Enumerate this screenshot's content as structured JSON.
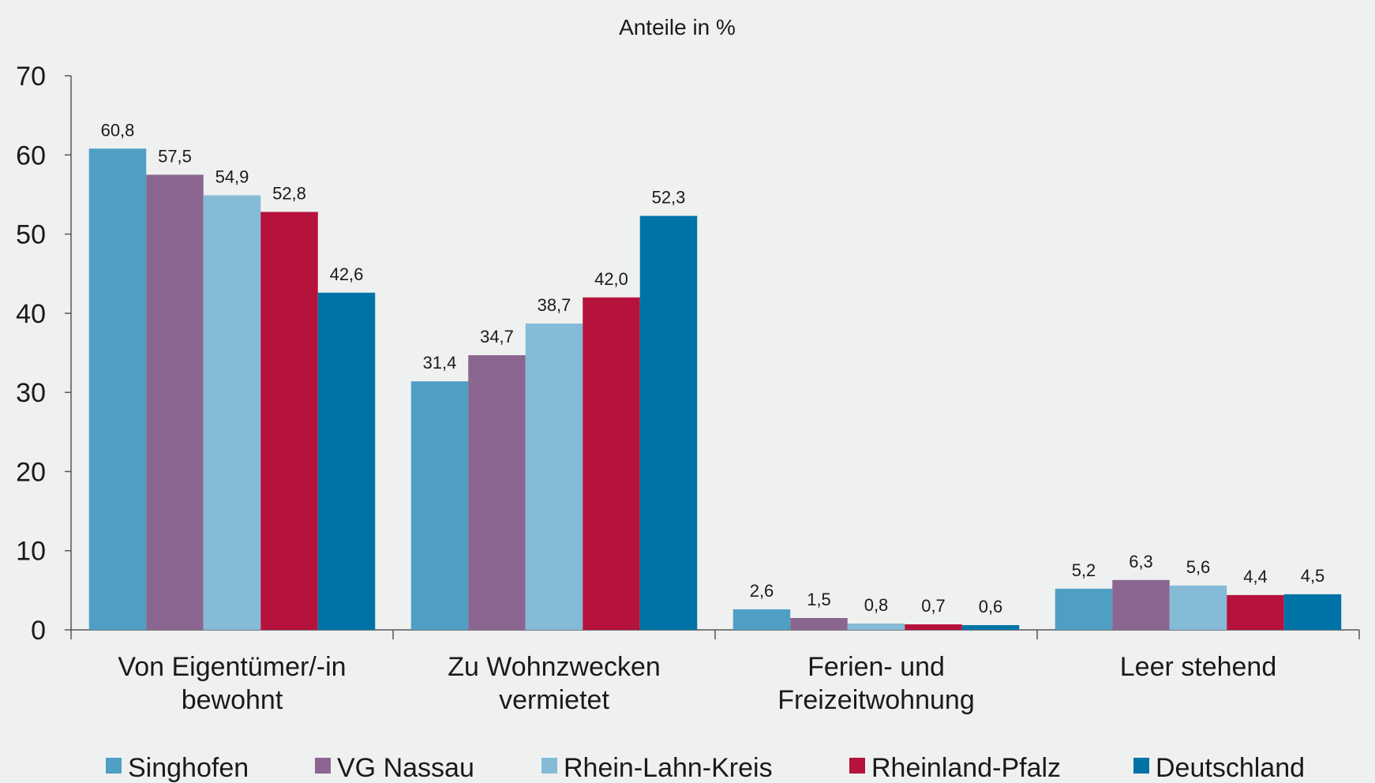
{
  "chart_data": {
    "type": "bar",
    "title": "",
    "subtitle": "Anteile in %",
    "xlabel": "",
    "ylabel": "",
    "ylim": [
      0,
      70
    ],
    "yticks": [
      "0",
      "10",
      "20",
      "30",
      "40",
      "50",
      "60",
      "70"
    ],
    "categories": [
      [
        "Von Eigentümer/-in",
        "bewohnt"
      ],
      [
        "Zu Wohnzwecken",
        "vermietet"
      ],
      [
        "Ferien- und",
        "Freizeitwohnung"
      ],
      [
        "Leer stehend"
      ]
    ],
    "grid": false,
    "legend_position": "bottom",
    "series": [
      {
        "name": "Singhofen",
        "color": "#4f9fc4",
        "values": [
          60.8,
          31.4,
          2.6,
          5.2
        ],
        "labels": [
          "60,8",
          "31,4",
          "2,6",
          "5,2"
        ]
      },
      {
        "name": "VG Nassau",
        "color": "#8a6690",
        "values": [
          57.5,
          34.7,
          1.5,
          6.3
        ],
        "labels": [
          "57,5",
          "34,7",
          "1,5",
          "6,3"
        ]
      },
      {
        "name": "Rhein-Lahn-Kreis",
        "color": "#85bbd6",
        "values": [
          54.9,
          38.7,
          0.8,
          5.6
        ],
        "labels": [
          "54,9",
          "38,7",
          "0,8",
          "5,6"
        ]
      },
      {
        "name": "Rheinland-Pfalz",
        "color": "#b6133c",
        "values": [
          52.8,
          42.0,
          0.7,
          4.4
        ],
        "labels": [
          "52,8",
          "42,0",
          "0,7",
          "4,4"
        ]
      },
      {
        "name": "Deutschland",
        "color": "#0073a6",
        "values": [
          42.6,
          52.3,
          0.6,
          4.5
        ],
        "labels": [
          "42,6",
          "52,3",
          "0,6",
          "4,5"
        ]
      }
    ]
  }
}
